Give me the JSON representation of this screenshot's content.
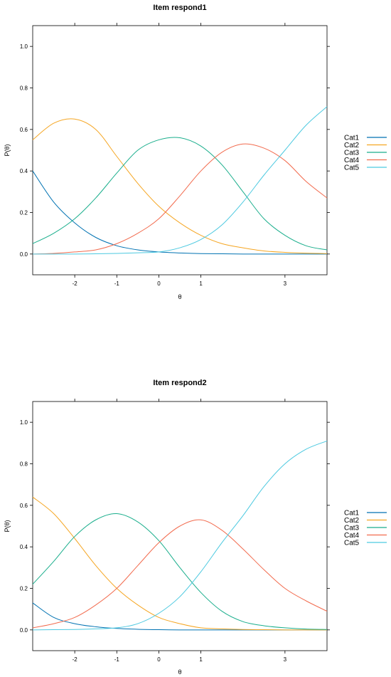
{
  "chart_data": [
    {
      "type": "line",
      "title": "Item respond1",
      "xlabel": "θ",
      "ylabel": "P(θ)",
      "xlim": [
        -3,
        4
      ],
      "ylim": [
        -0.1,
        1.1
      ],
      "xticks": [
        "-2",
        "-1",
        "0",
        "1",
        "3"
      ],
      "xtick_values": [
        -2,
        -1,
        0,
        1,
        3
      ],
      "yticks": [
        "0.0",
        "0.2",
        "0.4",
        "0.6",
        "0.8",
        "1.0"
      ],
      "ytick_values": [
        0,
        0.2,
        0.4,
        0.6,
        0.8,
        1.0
      ],
      "legend_position": "right",
      "x": [
        -3,
        -2.5,
        -2,
        -1.5,
        -1,
        -0.5,
        0,
        0.5,
        1,
        1.5,
        2,
        2.5,
        3,
        3.5,
        4
      ],
      "series": [
        {
          "name": "Cat1",
          "color": "#0072B2",
          "values": [
            0.4,
            0.25,
            0.15,
            0.08,
            0.04,
            0.02,
            0.01,
            0.005,
            0.002,
            0.001,
            0.0,
            0.0,
            0.0,
            0.0,
            0.0
          ]
        },
        {
          "name": "Cat2",
          "color": "#F5A623",
          "values": [
            0.55,
            0.63,
            0.65,
            0.6,
            0.47,
            0.34,
            0.23,
            0.15,
            0.09,
            0.05,
            0.03,
            0.015,
            0.008,
            0.004,
            0.002
          ]
        },
        {
          "name": "Cat3",
          "color": "#1AAE8C",
          "values": [
            0.05,
            0.1,
            0.17,
            0.27,
            0.39,
            0.5,
            0.55,
            0.56,
            0.52,
            0.43,
            0.3,
            0.17,
            0.09,
            0.04,
            0.02
          ]
        },
        {
          "name": "Cat4",
          "color": "#F26B4E",
          "values": [
            0.0,
            0.003,
            0.01,
            0.02,
            0.05,
            0.1,
            0.17,
            0.28,
            0.4,
            0.49,
            0.53,
            0.51,
            0.45,
            0.35,
            0.27
          ]
        },
        {
          "name": "Cat5",
          "color": "#4CC9E0",
          "values": [
            0.0,
            0.0,
            0.0,
            0.001,
            0.003,
            0.006,
            0.01,
            0.03,
            0.07,
            0.14,
            0.25,
            0.38,
            0.5,
            0.62,
            0.71
          ]
        }
      ]
    },
    {
      "type": "line",
      "title": "Item respond2",
      "xlabel": "θ",
      "ylabel": "P(θ)",
      "xlim": [
        -3,
        4
      ],
      "ylim": [
        -0.1,
        1.1
      ],
      "xticks": [
        "-2",
        "-1",
        "0",
        "1",
        "3"
      ],
      "xtick_values": [
        -2,
        -1,
        0,
        1,
        3
      ],
      "yticks": [
        "0.0",
        "0.2",
        "0.4",
        "0.6",
        "0.8",
        "1.0"
      ],
      "ytick_values": [
        0,
        0.2,
        0.4,
        0.6,
        0.8,
        1.0
      ],
      "legend_position": "right",
      "x": [
        -3,
        -2.5,
        -2,
        -1.5,
        -1,
        -0.5,
        0,
        0.5,
        1,
        1.5,
        2,
        2.5,
        3,
        3.5,
        4
      ],
      "series": [
        {
          "name": "Cat1",
          "color": "#0072B2",
          "values": [
            0.13,
            0.06,
            0.03,
            0.015,
            0.007,
            0.003,
            0.001,
            0.0,
            0.0,
            0.0,
            0.0,
            0.0,
            0.0,
            0.0,
            0.0
          ]
        },
        {
          "name": "Cat2",
          "color": "#F5A623",
          "values": [
            0.64,
            0.56,
            0.44,
            0.31,
            0.2,
            0.12,
            0.06,
            0.03,
            0.01,
            0.005,
            0.002,
            0.001,
            0.0,
            0.0,
            0.0
          ]
        },
        {
          "name": "Cat3",
          "color": "#1AAE8C",
          "values": [
            0.22,
            0.33,
            0.45,
            0.53,
            0.56,
            0.52,
            0.43,
            0.3,
            0.18,
            0.09,
            0.04,
            0.02,
            0.01,
            0.004,
            0.002
          ]
        },
        {
          "name": "Cat4",
          "color": "#F26B4E",
          "values": [
            0.01,
            0.03,
            0.06,
            0.12,
            0.2,
            0.31,
            0.42,
            0.5,
            0.53,
            0.48,
            0.39,
            0.29,
            0.2,
            0.14,
            0.09
          ]
        },
        {
          "name": "Cat5",
          "color": "#4CC9E0",
          "values": [
            0.0,
            0.001,
            0.002,
            0.005,
            0.01,
            0.03,
            0.08,
            0.16,
            0.28,
            0.42,
            0.55,
            0.69,
            0.8,
            0.87,
            0.91
          ]
        }
      ]
    }
  ]
}
